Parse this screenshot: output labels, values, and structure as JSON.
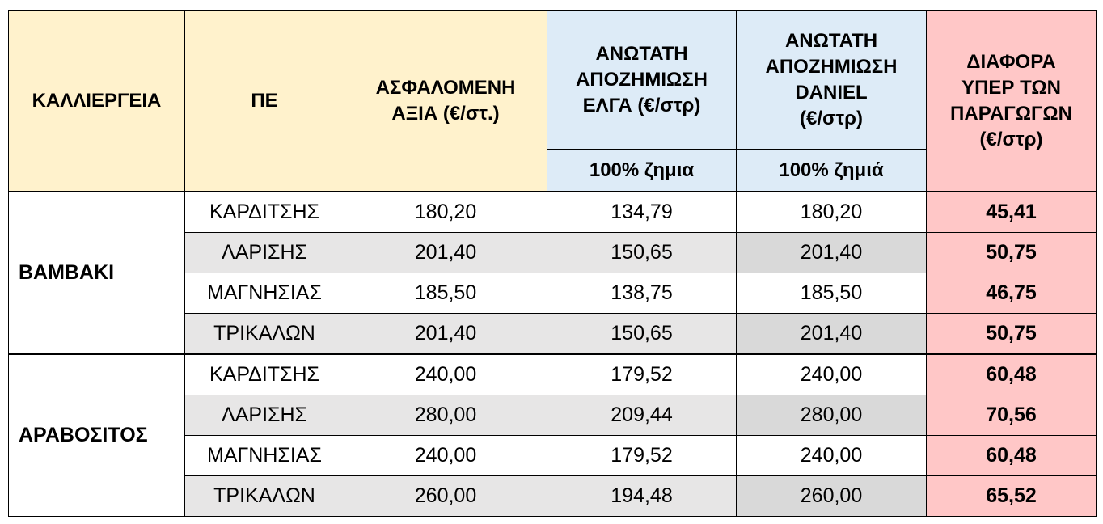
{
  "table": {
    "header": {
      "columns": [
        {
          "lines": [
            "ΚΑΛΛΙΕΡΓΕΙΑ"
          ]
        },
        {
          "lines": [
            "ΠΕ"
          ]
        },
        {
          "lines": [
            "ΑΣΦΑΛΟΜΕΝΗ",
            "ΑΞΙΑ (€/στ.)"
          ]
        },
        {
          "lines": [
            "ΑΝΩΤΑΤΗ",
            "ΑΠΟΖΗΜΙΩΣΗ",
            "ΕΛΓΑ (€/στρ)"
          ],
          "sub": "100% ζημια"
        },
        {
          "lines": [
            "ΑΝΩΤΑΤΗ",
            "ΑΠΟΖΗΜΙΩΣΗ",
            "DANIEL",
            "(€/στρ)"
          ],
          "sub": "100% ζημιά"
        },
        {
          "lines": [
            "ΔΙΑΦΟΡΑ",
            "ΥΠΕΡ ΤΩΝ",
            "ΠΑΡΑΓΩΓΩΝ",
            "(€/στρ)"
          ]
        }
      ]
    },
    "groups": [
      {
        "crop": "ΒΑΜΒΑΚΙ",
        "rows": [
          [
            "ΚΑΡΔΙΤΣΗΣ",
            "180,20",
            "134,79",
            "180,20",
            "45,41"
          ],
          [
            "ΛΑΡΙΣΗΣ",
            "201,40",
            "150,65",
            "201,40",
            "50,75"
          ],
          [
            "ΜΑΓΝΗΣΙΑΣ",
            "185,50",
            "138,75",
            "185,50",
            "46,75"
          ],
          [
            "ΤΡΙΚΑΛΩΝ",
            "201,40",
            "150,65",
            "201,40",
            "50,75"
          ]
        ]
      },
      {
        "crop": "ΑΡΑΒΟΣΙΤΟΣ",
        "rows": [
          [
            "ΚΑΡΔΙΤΣΗΣ",
            "240,00",
            "179,52",
            "240,00",
            "60,48"
          ],
          [
            "ΛΑΡΙΣΗΣ",
            "280,00",
            "209,44",
            "280,00",
            "70,56"
          ],
          [
            "ΜΑΓΝΗΣΙΑΣ",
            "240,00",
            "179,52",
            "240,00",
            "60,48"
          ],
          [
            "ΤΡΙΚΑΛΩΝ",
            "260,00",
            "194,48",
            "260,00",
            "65,52"
          ]
        ]
      }
    ]
  }
}
